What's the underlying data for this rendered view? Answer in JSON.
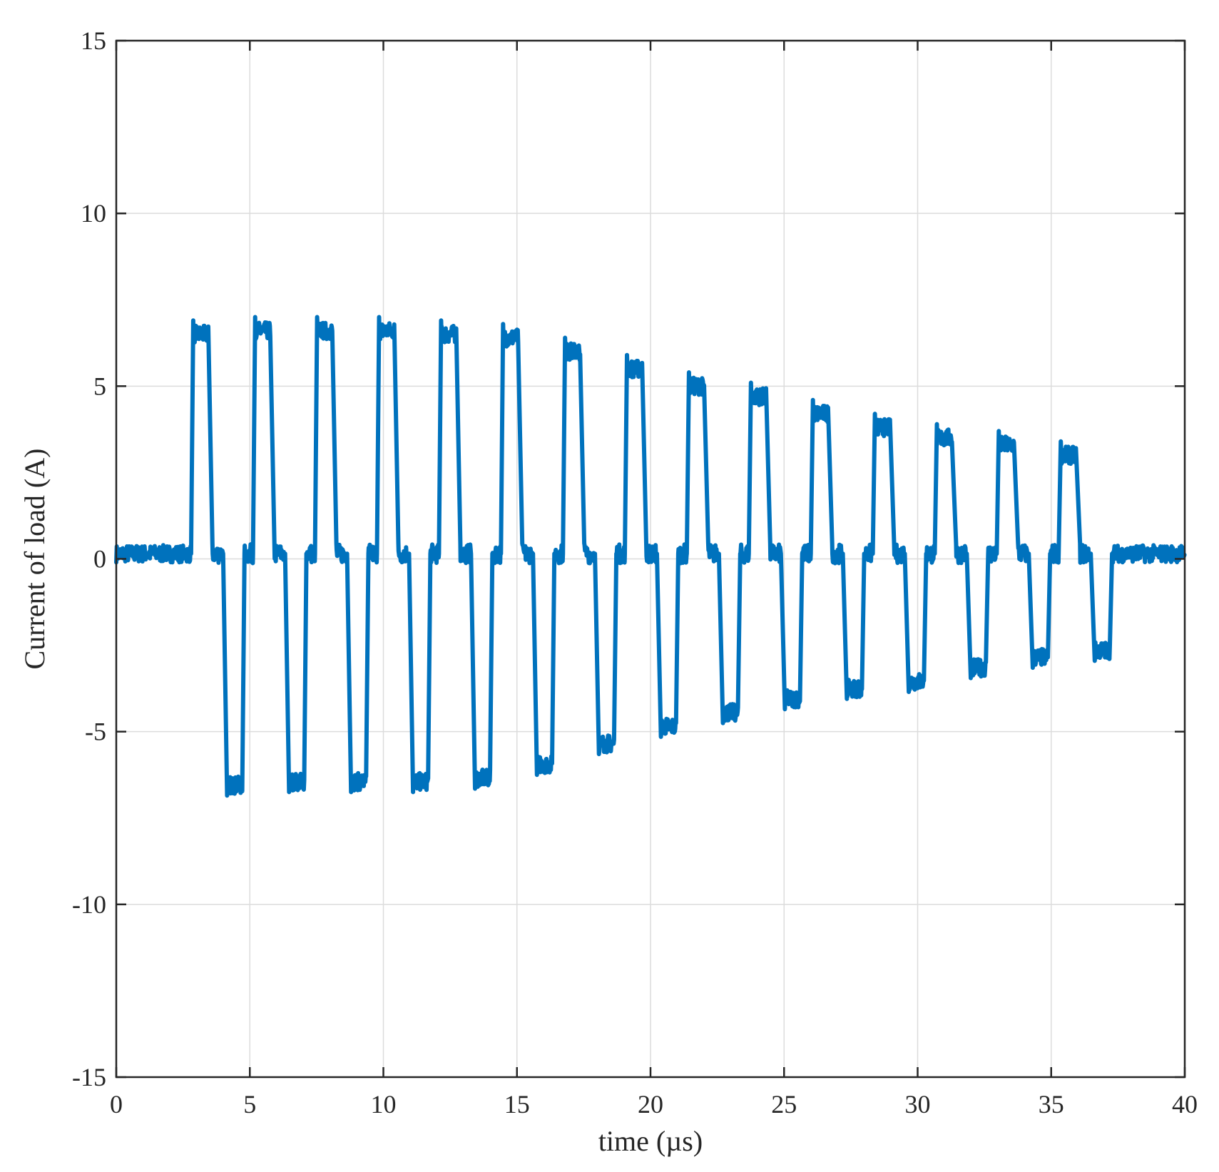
{
  "chart_data": {
    "type": "line",
    "title": "",
    "xlabel": "time (µs)",
    "ylabel": "Current of load (A)",
    "xlim": [
      0,
      40
    ],
    "ylim": [
      -15,
      15
    ],
    "xticks": [
      0,
      5,
      10,
      15,
      20,
      25,
      30,
      35,
      40
    ],
    "yticks": [
      -15,
      -10,
      -5,
      0,
      5,
      10,
      15
    ],
    "grid": true,
    "legend": "none",
    "color": "#0072BD",
    "series": [
      {
        "pulse_period": 2.32,
        "first_pulse_start": 2.8,
        "pulse_width": 0.8,
        "pulse_end_time": 36.2,
        "positive_peaks": [
          6.6,
          6.7,
          6.7,
          6.7,
          6.6,
          6.5,
          6.1,
          5.6,
          5.1,
          4.8,
          4.3,
          3.9,
          3.6,
          3.4,
          3.1
        ],
        "negative_peaks": [
          -6.7,
          -6.6,
          -6.6,
          -6.6,
          -6.5,
          -6.1,
          -5.5,
          -5.0,
          -4.6,
          -4.2,
          -3.9,
          -3.7,
          -3.3,
          -3.0,
          -2.8
        ],
        "x": [
          0,
          2.8,
          3.6,
          4.0,
          4.8,
          36.2,
          40
        ],
        "y": [
          0.15,
          0.15,
          6.6,
          0.15,
          -6.7,
          -2.8,
          0.15
        ]
      }
    ]
  }
}
